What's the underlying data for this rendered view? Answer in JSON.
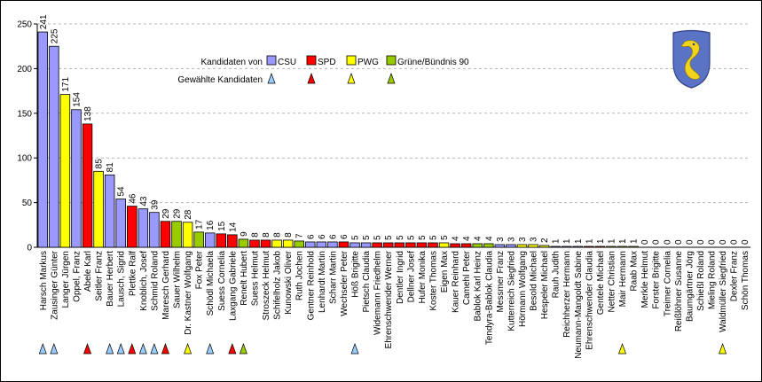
{
  "chart_data": {
    "type": "bar",
    "ylim": [
      0,
      250
    ],
    "yticks": [
      0,
      50,
      100,
      150,
      200,
      250
    ],
    "grid": true,
    "legend_position": "top-center",
    "legend": {
      "title": "Kandidaten von",
      "elected_label": "Gewählte Kandidaten",
      "entries": [
        {
          "key": "CSU",
          "label": "CSU"
        },
        {
          "key": "SPD",
          "label": "SPD"
        },
        {
          "key": "PWG",
          "label": "PWG"
        },
        {
          "key": "GRUENE",
          "label": "Grüne/Bündnis 90"
        }
      ]
    },
    "party_colors": {
      "CSU": "#9999ff",
      "SPD": "#ff0000",
      "PWG": "#ffff00",
      "GRUENE": "#99cc00"
    },
    "marker_colors": {
      "CSU": "#99ccff",
      "SPD": "#ff0000",
      "PWG": "#ffff00",
      "GRUENE": "#99cc00"
    },
    "candidates": [
      {
        "name": "Harsch Markus",
        "value": 241,
        "party": "CSU",
        "elected": true
      },
      {
        "name": "Zausinger Günter",
        "value": 225,
        "party": "CSU",
        "elected": true
      },
      {
        "name": "Langer Jürgen",
        "value": 171,
        "party": "PWG",
        "elected": false
      },
      {
        "name": "Oppel, Franz",
        "value": 154,
        "party": "CSU",
        "elected": false
      },
      {
        "name": "Abele Karl",
        "value": 138,
        "party": "SPD",
        "elected": true
      },
      {
        "name": "Seitler Franz",
        "value": 85,
        "party": "PWG",
        "elected": false
      },
      {
        "name": "Bauer Herbert",
        "value": 81,
        "party": "CSU",
        "elected": true
      },
      {
        "name": "Lausch, Sigrid",
        "value": 54,
        "party": "CSU",
        "elected": true
      },
      {
        "name": "Plettke Ralf",
        "value": 46,
        "party": "SPD",
        "elected": true
      },
      {
        "name": "Knoblich, Josef",
        "value": 43,
        "party": "CSU",
        "elected": true
      },
      {
        "name": "Schmid Roland",
        "value": 39,
        "party": "CSU",
        "elected": true
      },
      {
        "name": "Maresch Gerhard",
        "value": 29,
        "party": "SPD",
        "elected": true
      },
      {
        "name": "Sauer Wilhelm",
        "value": 29,
        "party": "GRUENE",
        "elected": false
      },
      {
        "name": "Dr. Kastner Wolfgang",
        "value": 28,
        "party": "PWG",
        "elected": true
      },
      {
        "name": "Fox Peter",
        "value": 17,
        "party": "GRUENE",
        "elected": false
      },
      {
        "name": "Schödl Michaela",
        "value": 16,
        "party": "CSU",
        "elected": true
      },
      {
        "name": "Suess Cornelia",
        "value": 15,
        "party": "SPD",
        "elected": false
      },
      {
        "name": "Laxgang Gabriele",
        "value": 14,
        "party": "SPD",
        "elected": true
      },
      {
        "name": "Renelt Hubert",
        "value": 9,
        "party": "GRUENE",
        "elected": true
      },
      {
        "name": "Suess Helmut",
        "value": 8,
        "party": "SPD",
        "elected": false
      },
      {
        "name": "Stroszeck Helmut",
        "value": 8,
        "party": "SPD",
        "elected": false
      },
      {
        "name": "Schifelholz Jakob",
        "value": 8,
        "party": "PWG",
        "elected": false
      },
      {
        "name": "Kunowski Oliver",
        "value": 8,
        "party": "PWG",
        "elected": false
      },
      {
        "name": "Ruth Jochen",
        "value": 7,
        "party": "GRUENE",
        "elected": false
      },
      {
        "name": "Gentner Reinhold",
        "value": 6,
        "party": "CSU",
        "elected": false
      },
      {
        "name": "Lenhardt Martin",
        "value": 6,
        "party": "CSU",
        "elected": false
      },
      {
        "name": "Scharr Martin",
        "value": 6,
        "party": "CSU",
        "elected": false
      },
      {
        "name": "Wechseler Peter",
        "value": 6,
        "party": "SPD",
        "elected": false
      },
      {
        "name": "Höß Brigitte",
        "value": 5,
        "party": "CSU",
        "elected": true
      },
      {
        "name": "Pietsch Claudia",
        "value": 5,
        "party": "CSU",
        "elected": false
      },
      {
        "name": "Widemann Friedhelm",
        "value": 5,
        "party": "SPD",
        "elected": false
      },
      {
        "name": "Ehrenschwender Werner",
        "value": 5,
        "party": "SPD",
        "elected": false
      },
      {
        "name": "Dentler Ingrid",
        "value": 5,
        "party": "SPD",
        "elected": false
      },
      {
        "name": "Dellner Josef",
        "value": 5,
        "party": "SPD",
        "elected": false
      },
      {
        "name": "Hufer Monika",
        "value": 5,
        "party": "SPD",
        "elected": false
      },
      {
        "name": "Koster Thomas",
        "value": 5,
        "party": "SPD",
        "elected": false
      },
      {
        "name": "Eigen Max",
        "value": 5,
        "party": "PWG",
        "elected": false
      },
      {
        "name": "Kauer Reinhard",
        "value": 4,
        "party": "SPD",
        "elected": false
      },
      {
        "name": "Camehl Peter",
        "value": 4,
        "party": "SPD",
        "elected": false
      },
      {
        "name": "Bablok Karl Heinz",
        "value": 4,
        "party": "GRUENE",
        "elected": false
      },
      {
        "name": "Tendyra-Bablok Claudia",
        "value": 4,
        "party": "GRUENE",
        "elected": false
      },
      {
        "name": "Messmer Franz",
        "value": 3,
        "party": "CSU",
        "elected": false
      },
      {
        "name": "Kutterreich Siegfried",
        "value": 3,
        "party": "CSU",
        "elected": false
      },
      {
        "name": "Hörmann Wolfgang",
        "value": 3,
        "party": "PWG",
        "elected": false
      },
      {
        "name": "Besold Michael",
        "value": 3,
        "party": "PWG",
        "elected": false
      },
      {
        "name": "Hespeler Michael",
        "value": 2,
        "party": "PWG",
        "elected": false
      },
      {
        "name": "Rauh Judith",
        "value": 1,
        "party": "CSU",
        "elected": false
      },
      {
        "name": "Reichherzer Hermann",
        "value": 1,
        "party": "CSU",
        "elected": false
      },
      {
        "name": "Neumann-Mangoldt Sabine",
        "value": 1,
        "party": "CSU",
        "elected": false
      },
      {
        "name": "Ehrenschwender Claudia",
        "value": 1,
        "party": "SPD",
        "elected": false
      },
      {
        "name": "Gentele Michael",
        "value": 1,
        "party": "SPD",
        "elected": false
      },
      {
        "name": "Netter Christian",
        "value": 1,
        "party": "PWG",
        "elected": false
      },
      {
        "name": "Mair Hermann",
        "value": 1,
        "party": "PWG",
        "elected": true
      },
      {
        "name": "Raab Max",
        "value": 1,
        "party": "PWG",
        "elected": false
      },
      {
        "name": "Merkle Helmut",
        "value": 0,
        "party": "CSU",
        "elected": false
      },
      {
        "name": "Forster Brigitte",
        "value": 0,
        "party": "CSU",
        "elected": false
      },
      {
        "name": "Treimer Cornelia",
        "value": 0,
        "party": "SPD",
        "elected": false
      },
      {
        "name": "Reißlöhner Susanne",
        "value": 0,
        "party": "SPD",
        "elected": false
      },
      {
        "name": "Baumgärtner Jörg",
        "value": 0,
        "party": "SPD",
        "elected": false
      },
      {
        "name": "Schießl Roland",
        "value": 0,
        "party": "PWG",
        "elected": false
      },
      {
        "name": "Mieling Roland",
        "value": 0,
        "party": "PWG",
        "elected": false
      },
      {
        "name": "Waldmüller Siegfried",
        "value": 0,
        "party": "PWG",
        "elected": true
      },
      {
        "name": "Dexler Franz",
        "value": 0,
        "party": "GRUENE",
        "elected": false
      },
      {
        "name": "Schön Thomas",
        "value": 0,
        "party": "GRUENE",
        "elected": false
      }
    ]
  },
  "emblem": {
    "name": "coat-of-arms",
    "colors": [
      "#5b73c5",
      "#f2d21b"
    ]
  }
}
